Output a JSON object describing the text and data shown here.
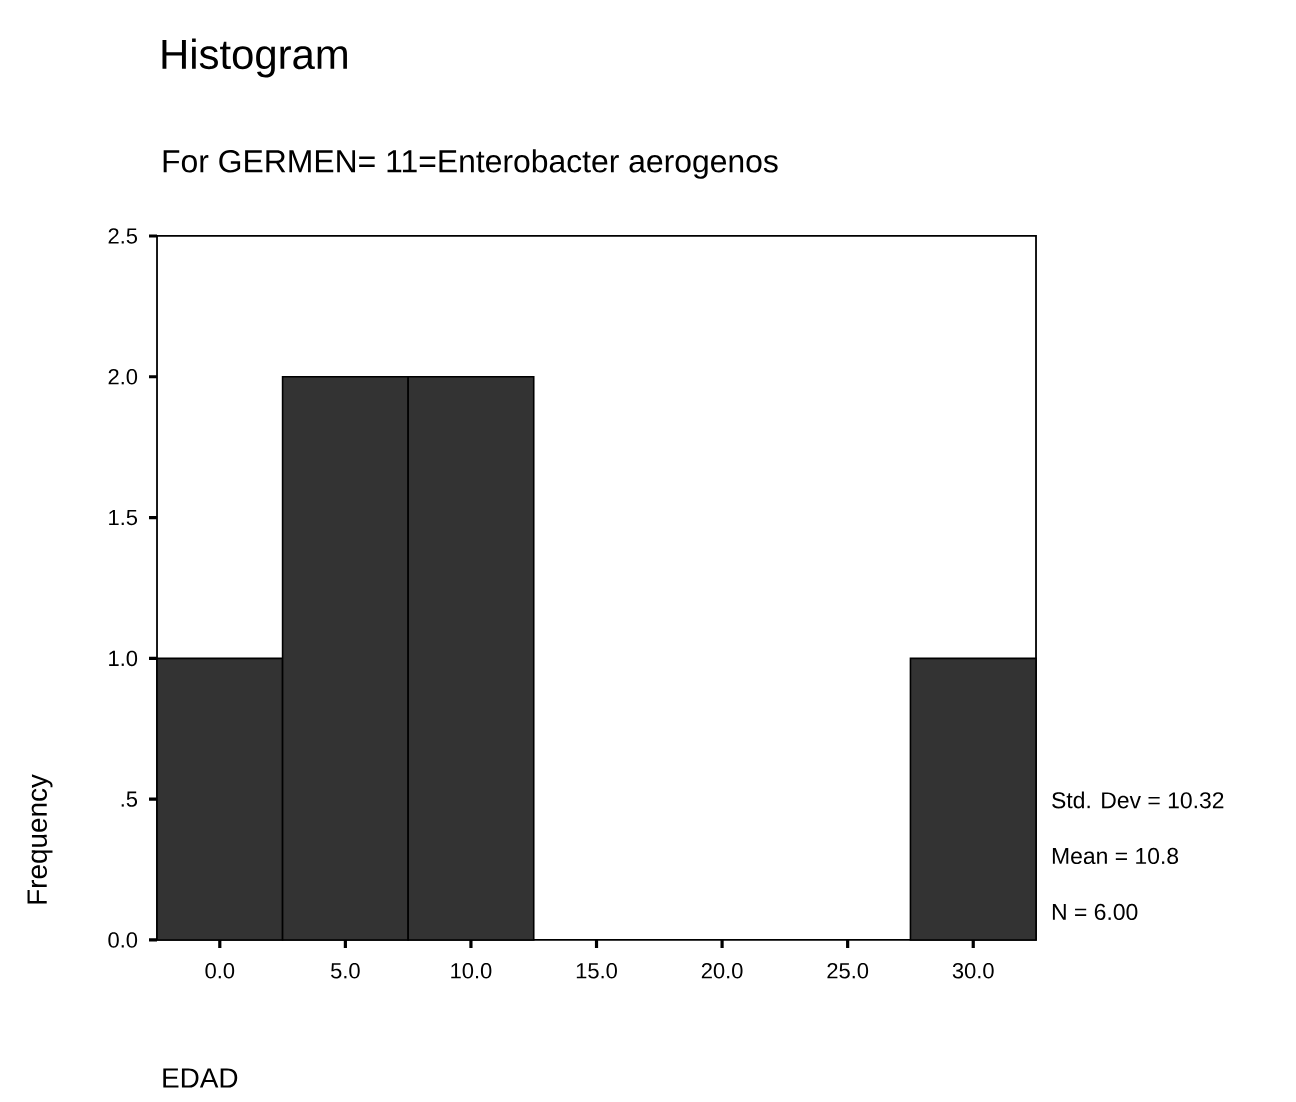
{
  "chart_data": {
    "type": "histogram",
    "title": "Histogram",
    "subtitle": "For GERMEN= 11=Enterobacter aerogenos",
    "xlabel": "EDAD",
    "ylabel": "Frequency",
    "bins": [
      -2.5,
      2.5,
      7.5,
      12.5,
      17.5,
      22.5,
      27.5,
      32.5
    ],
    "values": [
      1,
      2,
      2,
      0,
      0,
      0,
      1
    ],
    "color": "#333333",
    "xlim": [
      -2.5,
      32.5
    ],
    "ylim": [
      0,
      2.5
    ],
    "xticks": [
      {
        "value": 0,
        "label": "0.0"
      },
      {
        "value": 5,
        "label": "5.0"
      },
      {
        "value": 10,
        "label": "10.0"
      },
      {
        "value": 15,
        "label": "15.0"
      },
      {
        "value": 20,
        "label": "20.0"
      },
      {
        "value": 25,
        "label": "25.0"
      },
      {
        "value": 30,
        "label": "30.0"
      }
    ],
    "yticks": [
      {
        "value": 0,
        "label": "0.0"
      },
      {
        "value": 0.5,
        "label": ".5"
      },
      {
        "value": 1,
        "label": "1.0"
      },
      {
        "value": 1.5,
        "label": "1.5"
      },
      {
        "value": 2,
        "label": "2.0"
      },
      {
        "value": 2.5,
        "label": "2.5"
      }
    ],
    "annotations": [
      "Std. Dev = 10.32",
      "Mean = 10.8",
      "N = 6.00"
    ],
    "grid": false
  }
}
